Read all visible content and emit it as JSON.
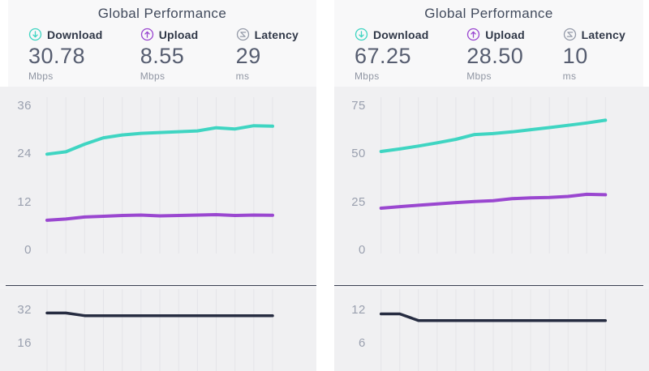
{
  "theme": {
    "download_color": "#3fd5c2",
    "upload_color": "#9a47d0",
    "latency_color": "#262c41",
    "gridline_color": "#e4e4e8",
    "axis_label_color": "#9aa0af"
  },
  "panels": [
    {
      "title": "Global Performance",
      "stats": [
        {
          "icon": "download-circle-icon",
          "label": "Download",
          "value": "30.78",
          "unit": "Mbps"
        },
        {
          "icon": "upload-circle-icon",
          "label": "Upload",
          "value": "8.55",
          "unit": "Mbps"
        },
        {
          "icon": "latency-dial-icon",
          "label": "Latency",
          "value": "29",
          "unit": "ms"
        }
      ]
    },
    {
      "title": "Global Performance",
      "stats": [
        {
          "icon": "download-circle-icon",
          "label": "Download",
          "value": "67.25",
          "unit": "Mbps"
        },
        {
          "icon": "upload-circle-icon",
          "label": "Upload",
          "value": "28.50",
          "unit": "Mbps"
        },
        {
          "icon": "latency-dial-icon",
          "label": "Latency",
          "value": "10",
          "unit": "ms"
        }
      ]
    }
  ],
  "chart_data": [
    {
      "type": "line",
      "panel": "left",
      "position": "top",
      "title": "",
      "xlabel": "",
      "ylabel": "",
      "y_ticks": [
        36,
        24,
        12,
        0
      ],
      "ylim": [
        0,
        36
      ],
      "grid": "vertical-only",
      "x_labels_visible": false,
      "legend": "none",
      "series": [
        {
          "name": "Download",
          "color_key": "download_color",
          "values": [
            23.8,
            24.4,
            26.3,
            27.9,
            28.6,
            29.0,
            29.2,
            29.4,
            29.6,
            30.4,
            30.1,
            30.9,
            30.78
          ]
        },
        {
          "name": "Upload",
          "color_key": "upload_color",
          "values": [
            7.3,
            7.6,
            8.1,
            8.3,
            8.5,
            8.6,
            8.4,
            8.5,
            8.6,
            8.7,
            8.5,
            8.6,
            8.55
          ]
        }
      ]
    },
    {
      "type": "line",
      "panel": "left",
      "position": "bottom",
      "y_ticks": [
        32,
        16
      ],
      "ylim": [
        16,
        32
      ],
      "grid": "vertical-only",
      "x_labels_visible": false,
      "legend": "none",
      "series": [
        {
          "name": "Latency",
          "color_key": "latency_color",
          "values": [
            30.3,
            30.3,
            29.0,
            29.0,
            29.0,
            29.0,
            29.0,
            29.0,
            29.0,
            29.0,
            29.0,
            29.0,
            29.0
          ]
        }
      ]
    },
    {
      "type": "line",
      "panel": "right",
      "position": "top",
      "title": "",
      "xlabel": "",
      "ylabel": "",
      "y_ticks": [
        75,
        50,
        25,
        0
      ],
      "ylim": [
        0,
        75
      ],
      "grid": "vertical-only",
      "x_labels_visible": false,
      "legend": "none",
      "series": [
        {
          "name": "Download",
          "color_key": "download_color",
          "values": [
            51.0,
            52.3,
            53.8,
            55.5,
            57.3,
            59.8,
            60.3,
            61.2,
            62.3,
            63.4,
            64.6,
            65.8,
            67.25
          ]
        },
        {
          "name": "Upload",
          "color_key": "upload_color",
          "values": [
            21.5,
            22.3,
            23.0,
            23.7,
            24.4,
            25.0,
            25.4,
            26.4,
            26.9,
            27.1,
            27.6,
            28.7,
            28.5
          ]
        }
      ]
    },
    {
      "type": "line",
      "panel": "right",
      "position": "bottom",
      "y_ticks": [
        12,
        6
      ],
      "ylim": [
        6,
        12
      ],
      "grid": "vertical-only",
      "x_labels_visible": false,
      "legend": "none",
      "series": [
        {
          "name": "Latency",
          "color_key": "latency_color",
          "values": [
            11.2,
            11.2,
            10.0,
            10.0,
            10.0,
            10.0,
            10.0,
            10.0,
            10.0,
            10.0,
            10.0,
            10.0,
            10.0
          ]
        }
      ]
    }
  ]
}
